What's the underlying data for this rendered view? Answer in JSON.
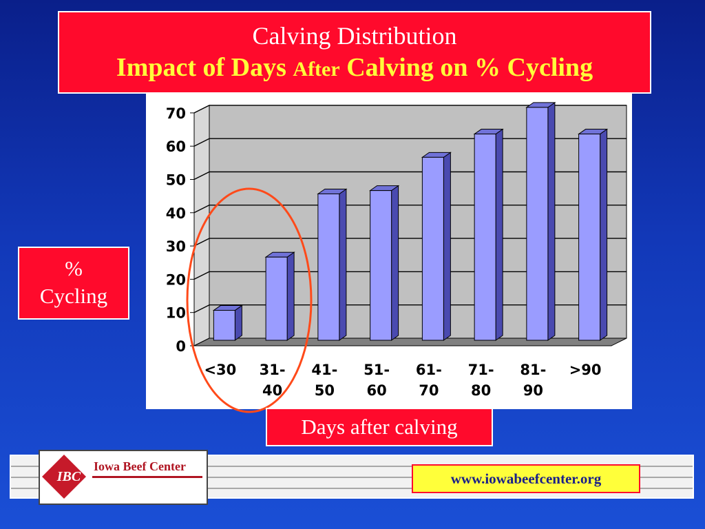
{
  "title": {
    "line1": "Calving Distribution",
    "line2_part1": "Impact of Days ",
    "line2_small": "After",
    "line2_part2": " Calving on % Cycling"
  },
  "ylabel": {
    "line1": "%",
    "line2": "Cycling"
  },
  "xlabel": "Days after calving",
  "logo": {
    "initials": "IBC",
    "name": "Iowa Beef Center"
  },
  "url": "www.iowabeefcenter.org",
  "colors": {
    "bar_front": "#9a9cff",
    "bar_side": "#4a4ab0",
    "bar_top": "#7072d8",
    "plot_back": "#c0c0c0",
    "plot_floor": "#808080",
    "highlight_circle": "#ff4a1a",
    "title_bg": "#ff0a2c"
  },
  "chart_data": {
    "type": "bar",
    "categories": [
      "<30",
      "31-40",
      "41-50",
      "51-60",
      "61-70",
      "71-80",
      "81-90",
      ">90"
    ],
    "tick_labels": [
      [
        "<30"
      ],
      [
        "31-",
        "40"
      ],
      [
        "41-",
        "50"
      ],
      [
        "51-",
        "60"
      ],
      [
        "61-",
        "70"
      ],
      [
        "71-",
        "80"
      ],
      [
        "81-",
        "90"
      ],
      [
        ">90"
      ]
    ],
    "values": [
      9,
      25,
      44,
      45,
      55,
      62,
      70,
      62
    ],
    "yticks": [
      0,
      10,
      20,
      30,
      40,
      50,
      60,
      70
    ],
    "ylim": [
      0,
      70
    ],
    "grid": true,
    "style": "3d",
    "annotation": "circle around first two categories"
  }
}
